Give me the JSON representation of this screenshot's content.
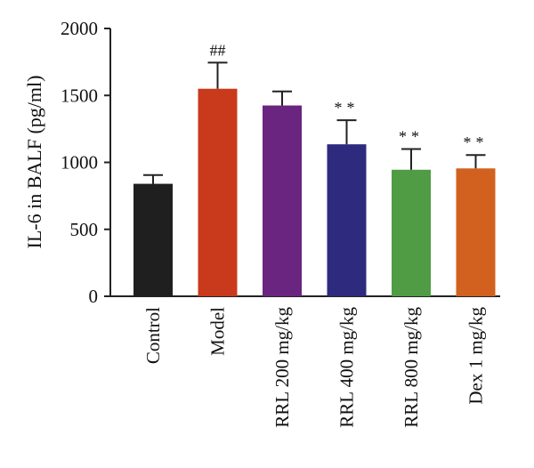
{
  "chart_data": {
    "type": "bar",
    "title": "",
    "ylabel": "IL-6 in BALF (pg/ml)",
    "xlabel": "",
    "ylim": [
      0,
      2000
    ],
    "yticks": [
      0,
      500,
      1000,
      1500,
      2000
    ],
    "ytick_labels": [
      "0",
      "500",
      "1000",
      "1500",
      "2000"
    ],
    "categories": [
      "Control",
      "Model",
      "RRL 200 mg/kg",
      "RRL 400 mg/kg",
      "RRL 800 mg/kg",
      "Dex 1 mg/kg"
    ],
    "values": [
      840,
      1550,
      1425,
      1135,
      945,
      955
    ],
    "errors": [
      65,
      195,
      105,
      180,
      155,
      100
    ],
    "significance": [
      "",
      "##",
      "",
      "**",
      "**",
      "**"
    ],
    "colors": [
      "#1f1f1f",
      "#c93a1c",
      "#6a2580",
      "#2e2a7e",
      "#4f9c45",
      "#d2601e"
    ],
    "grid": false,
    "legend": "none"
  }
}
